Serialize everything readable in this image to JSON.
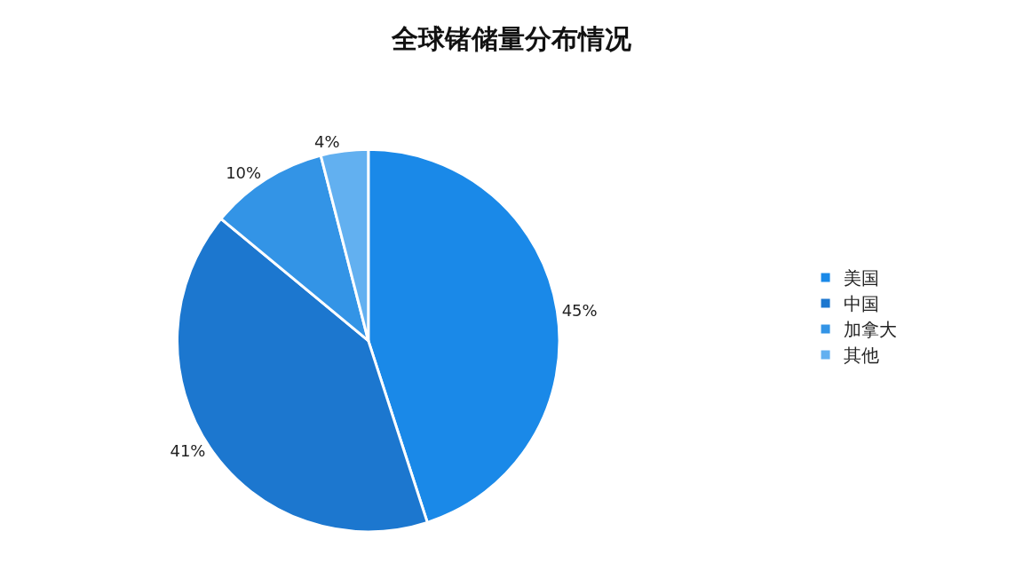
{
  "chart_data": {
    "type": "pie",
    "title": "全球锗储量分布情况",
    "categories": [
      "美国",
      "中国",
      "加拿大",
      "其他"
    ],
    "values": [
      45,
      41,
      10,
      4
    ],
    "value_labels": [
      "45%",
      "41%",
      "10%",
      "4%"
    ],
    "colors": [
      "#1a89e8",
      "#1c77cf",
      "#3394e6",
      "#62b0f0"
    ],
    "legend": "right"
  }
}
